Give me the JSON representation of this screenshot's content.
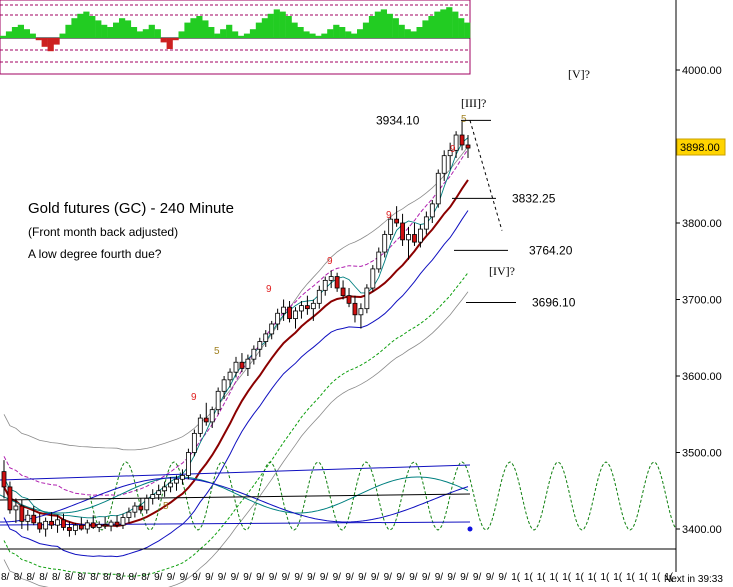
{
  "chart_data": {
    "type": "candlestick",
    "instrument_title": "Gold futures (GC) - 240 Minute",
    "subtitle_1": "(Front month back adjusted)",
    "subtitle_2": "A low degree fourth due?",
    "current_price": "3898.00",
    "ylim": [
      3380,
      4080
    ],
    "y_ticks": [
      "4000.00",
      "3900.00",
      "3800.00",
      "3700.00",
      "3600.00",
      "3500.00",
      "3400.00"
    ],
    "price_levels": [
      {
        "label": "3934.10",
        "value": 3934.1
      },
      {
        "label": "3832.25",
        "value": 3832.25
      },
      {
        "label": "3764.20",
        "value": 3764.2
      },
      {
        "label": "3696.10",
        "value": 3696.1
      }
    ],
    "wave_labels": [
      "[V]?",
      "[III]?",
      "[IV]?"
    ],
    "candles": [
      [
        3475,
        3490,
        3440,
        3455
      ],
      [
        3455,
        3462,
        3420,
        3425
      ],
      [
        3425,
        3440,
        3408,
        3430
      ],
      [
        3430,
        3438,
        3400,
        3410
      ],
      [
        3410,
        3425,
        3398,
        3418
      ],
      [
        3418,
        3430,
        3405,
        3408
      ],
      [
        3408,
        3420,
        3395,
        3400
      ],
      [
        3400,
        3415,
        3390,
        3410
      ],
      [
        3410,
        3422,
        3400,
        3405
      ],
      [
        3405,
        3418,
        3395,
        3412
      ],
      [
        3412,
        3420,
        3398,
        3402
      ],
      [
        3402,
        3410,
        3390,
        3398
      ],
      [
        3398,
        3408,
        3392,
        3405
      ],
      [
        3405,
        3415,
        3398,
        3400
      ],
      [
        3400,
        3412,
        3394,
        3408
      ],
      [
        3408,
        3418,
        3400,
        3402
      ],
      [
        3402,
        3410,
        3396,
        3406
      ],
      [
        3406,
        3416,
        3400,
        3404
      ],
      [
        3404,
        3412,
        3397,
        3409
      ],
      [
        3409,
        3418,
        3402,
        3405
      ],
      [
        3405,
        3420,
        3400,
        3415
      ],
      [
        3415,
        3428,
        3408,
        3422
      ],
      [
        3422,
        3435,
        3415,
        3430
      ],
      [
        3430,
        3440,
        3420,
        3425
      ],
      [
        3425,
        3445,
        3420,
        3440
      ],
      [
        3440,
        3452,
        3432,
        3445
      ],
      [
        3445,
        3458,
        3438,
        3450
      ],
      [
        3450,
        3462,
        3442,
        3455
      ],
      [
        3455,
        3468,
        3448,
        3460
      ],
      [
        3460,
        3470,
        3450,
        3465
      ],
      [
        3465,
        3478,
        3458,
        3470
      ],
      [
        3470,
        3505,
        3465,
        3500
      ],
      [
        3500,
        3530,
        3495,
        3525
      ],
      [
        3525,
        3550,
        3520,
        3545
      ],
      [
        3545,
        3565,
        3535,
        3540
      ],
      [
        3540,
        3560,
        3532,
        3556
      ],
      [
        3556,
        3585,
        3550,
        3580
      ],
      [
        3580,
        3600,
        3570,
        3595
      ],
      [
        3595,
        3610,
        3585,
        3605
      ],
      [
        3605,
        3625,
        3598,
        3618
      ],
      [
        3618,
        3630,
        3605,
        3610
      ],
      [
        3610,
        3628,
        3600,
        3622
      ],
      [
        3622,
        3640,
        3615,
        3635
      ],
      [
        3635,
        3650,
        3625,
        3645
      ],
      [
        3645,
        3660,
        3638,
        3655
      ],
      [
        3655,
        3672,
        3648,
        3668
      ],
      [
        3668,
        3688,
        3660,
        3682
      ],
      [
        3682,
        3700,
        3672,
        3690
      ],
      [
        3690,
        3698,
        3670,
        3675
      ],
      [
        3675,
        3690,
        3662,
        3685
      ],
      [
        3685,
        3698,
        3675,
        3692
      ],
      [
        3692,
        3705,
        3680,
        3688
      ],
      [
        3688,
        3700,
        3672,
        3695
      ],
      [
        3695,
        3718,
        3688,
        3712
      ],
      [
        3712,
        3730,
        3705,
        3725
      ],
      [
        3725,
        3738,
        3715,
        3730
      ],
      [
        3730,
        3735,
        3710,
        3715
      ],
      [
        3715,
        3725,
        3700,
        3705
      ],
      [
        3705,
        3715,
        3690,
        3695
      ],
      [
        3695,
        3705,
        3670,
        3680
      ],
      [
        3680,
        3695,
        3662,
        3688
      ],
      [
        3688,
        3720,
        3682,
        3715
      ],
      [
        3715,
        3745,
        3710,
        3740
      ],
      [
        3740,
        3768,
        3735,
        3762
      ],
      [
        3762,
        3790,
        3755,
        3785
      ],
      [
        3785,
        3812,
        3778,
        3805
      ],
      [
        3805,
        3822,
        3795,
        3800
      ],
      [
        3800,
        3812,
        3770,
        3778
      ],
      [
        3778,
        3795,
        3752,
        3785
      ],
      [
        3785,
        3800,
        3770,
        3775
      ],
      [
        3775,
        3798,
        3768,
        3792
      ],
      [
        3792,
        3815,
        3785,
        3808
      ],
      [
        3808,
        3830,
        3800,
        3825
      ],
      [
        3825,
        3870,
        3820,
        3865
      ],
      [
        3865,
        3895,
        3855,
        3888
      ],
      [
        3888,
        3905,
        3870,
        3895
      ],
      [
        3895,
        3920,
        3885,
        3915
      ],
      [
        3915,
        3934,
        3895,
        3902
      ],
      [
        3902,
        3915,
        3885,
        3898
      ]
    ],
    "oscillator_values": [
      1,
      3,
      5,
      6,
      4,
      2,
      -1,
      -4,
      -6,
      -3,
      2,
      6,
      9,
      11,
      12,
      10,
      8,
      6,
      5,
      7,
      9,
      8,
      5,
      3,
      4,
      6,
      4,
      -2,
      -5,
      -1,
      3,
      7,
      9,
      10,
      8,
      5,
      2,
      4,
      6,
      3,
      1,
      2,
      4,
      7,
      9,
      11,
      13,
      12,
      10,
      7,
      5,
      3,
      2,
      1,
      2,
      4,
      6,
      5,
      3,
      2,
      4,
      7,
      10,
      12,
      13,
      11,
      9,
      6,
      4,
      3,
      5,
      8,
      10,
      12,
      13,
      14,
      12,
      9,
      7
    ],
    "x_tick_labels": [
      "8/",
      "8/",
      "8/",
      "8/",
      "8/",
      "8/",
      "8/",
      "8/",
      "8/",
      "8/",
      "8/",
      "8/",
      "9/",
      "9/",
      "9/",
      "9/",
      "9/",
      "9/",
      "9/",
      "9/",
      "9/",
      "9/",
      "9/",
      "9/",
      "9/",
      "9/",
      "9/",
      "9/",
      "9/",
      "9/",
      "9/",
      "9/",
      "9/",
      "9/",
      "9/",
      "9/",
      "9/",
      "9/",
      "9/",
      "9/",
      "1(",
      "1(",
      "1(",
      "1(",
      "1(",
      "1(",
      "1(",
      "1(",
      "1(",
      "1(",
      "1(",
      "1(",
      "1("
    ],
    "timer_text": "Next in 39:33"
  }
}
